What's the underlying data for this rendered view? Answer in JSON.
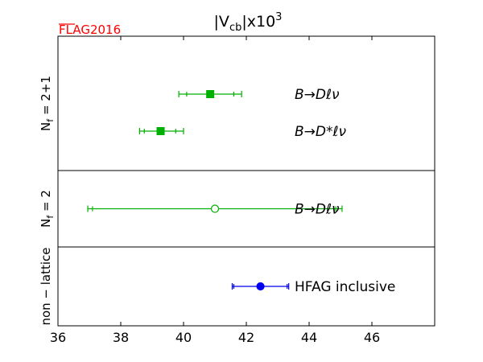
{
  "chart_data": {
    "type": "scatter",
    "title_base": "|V",
    "title_sub": "cb",
    "title_mid": "|x10",
    "title_sup": "3",
    "logo_text": "FLAG2016",
    "xlim": [
      36,
      48
    ],
    "xticks": [
      36,
      38,
      40,
      42,
      44,
      46
    ],
    "grid": false,
    "groups": [
      {
        "label_main": "N",
        "label_sub": "f",
        "label_rest": " = 2+1",
        "entries": [
          {
            "value": 40.85,
            "err_stat": [
              40.1,
              41.6
            ],
            "err_tot": [
              39.85,
              41.85
            ],
            "marker": "square",
            "filled": true,
            "color": "#00b000",
            "label": "B→Dℓν"
          },
          {
            "value": 39.27,
            "err_stat": [
              38.75,
              39.75
            ],
            "err_tot": [
              38.6,
              40.0
            ],
            "marker": "square",
            "filled": true,
            "color": "#00b000",
            "label": "B→D*ℓν"
          }
        ]
      },
      {
        "label_main": "N",
        "label_sub": "f",
        "label_rest": " = 2",
        "entries": [
          {
            "value": 41.0,
            "err_stat": [
              37.1,
              44.85
            ],
            "err_tot": [
              36.95,
              45.05
            ],
            "marker": "circle",
            "filled": false,
            "color": "#00b000",
            "label": "B→Dℓν"
          }
        ]
      },
      {
        "label_main": "non − lattice",
        "label_sub": "",
        "label_rest": "",
        "entries": [
          {
            "value": 42.45,
            "err_stat": [
              41.6,
              43.3
            ],
            "err_tot": [
              41.55,
              43.35
            ],
            "marker": "circle",
            "filled": true,
            "color": "#0000ee",
            "label": "HFAG inclusive"
          }
        ]
      }
    ]
  }
}
